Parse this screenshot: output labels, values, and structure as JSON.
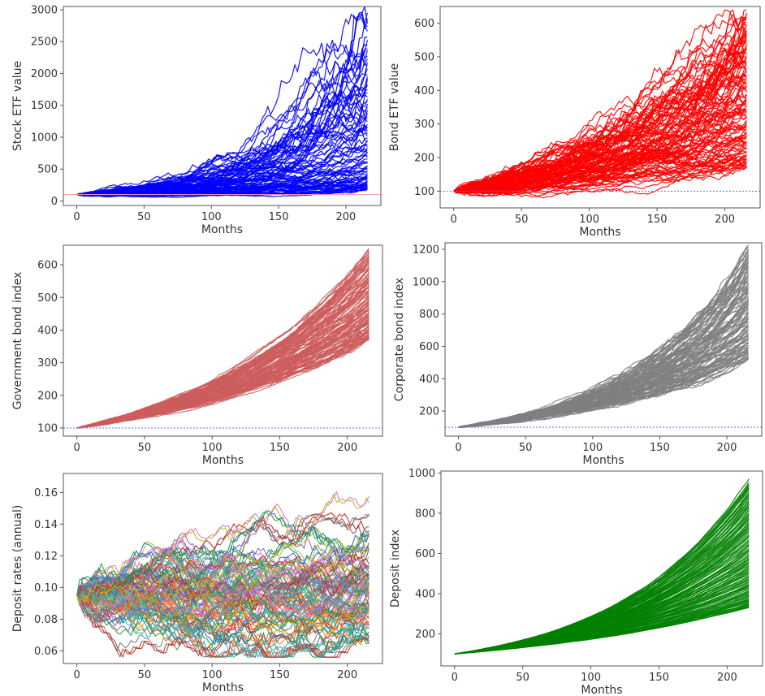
{
  "chart_data": [
    {
      "type": "line",
      "xlabel": "Months",
      "ylabel": "Stock ETF value",
      "xlim": [
        -10,
        226
      ],
      "ylim": [
        -70,
        3050
      ],
      "xticks": [
        0,
        50,
        100,
        150,
        200
      ],
      "yticks": [
        0,
        500,
        1000,
        1500,
        2000,
        2500,
        3000
      ],
      "color": "#0000ff",
      "baseline": 100,
      "baseline_color": "#ff9999",
      "baseline_style": "solid",
      "n_paths": 90,
      "months": 216,
      "final_range": [
        180,
        2950
      ]
    },
    {
      "type": "line",
      "xlabel": "Months",
      "ylabel": "Bond ETF value",
      "xlim": [
        -10,
        226
      ],
      "ylim": [
        50,
        650
      ],
      "xticks": [
        0,
        50,
        100,
        150,
        200
      ],
      "yticks": [
        100,
        200,
        300,
        400,
        500,
        600
      ],
      "color": "#ff0000",
      "baseline": 100,
      "baseline_color": "#6666ff",
      "baseline_style": "dotted",
      "n_paths": 110,
      "months": 216,
      "final_range": [
        170,
        640
      ]
    },
    {
      "type": "line",
      "xlabel": "Months",
      "ylabel": "Government bond index",
      "xlim": [
        -10,
        226
      ],
      "ylim": [
        75,
        660
      ],
      "xticks": [
        0,
        50,
        100,
        150,
        200
      ],
      "yticks": [
        100,
        200,
        300,
        400,
        500,
        600
      ],
      "color": "#cd5c5c",
      "baseline": 100,
      "baseline_color": "#6666ff",
      "baseline_style": "dotted",
      "n_paths": 110,
      "months": 216,
      "final_range": [
        370,
        650
      ]
    },
    {
      "type": "line",
      "xlabel": "Months",
      "ylabel": "Corporate bond index",
      "xlim": [
        -10,
        226
      ],
      "ylim": [
        45,
        1240
      ],
      "xticks": [
        0,
        50,
        100,
        150,
        200
      ],
      "yticks": [
        200,
        400,
        600,
        800,
        1000,
        1200
      ],
      "color": "#808080",
      "baseline": 100,
      "baseline_color": "#6666ff",
      "baseline_style": "dotted",
      "n_paths": 110,
      "months": 216,
      "final_range": [
        520,
        1230
      ]
    },
    {
      "type": "line",
      "xlabel": "Months",
      "ylabel": "Deposit rates (annual)",
      "xlim": [
        -10,
        226
      ],
      "ylim": [
        0.052,
        0.172
      ],
      "xticks": [
        0,
        50,
        100,
        150,
        200
      ],
      "yticks": [
        0.06,
        0.08,
        0.1,
        0.12,
        0.14,
        0.16
      ],
      "ytick_labels": [
        "0.06",
        "0.08",
        "0.10",
        "0.12",
        "0.14",
        "0.16"
      ],
      "colors": [
        "#1f77b4",
        "#ff7f0e",
        "#2ca02c",
        "#d62728",
        "#9467bd",
        "#8c564b",
        "#e377c2",
        "#7f7f7f",
        "#bcbd22",
        "#17becf"
      ],
      "start": 0.095,
      "n_paths": 110,
      "months": 216,
      "final_range": [
        0.06,
        0.165
      ]
    },
    {
      "type": "line",
      "xlabel": "Months",
      "ylabel": "Deposit index",
      "xlim": [
        -10,
        226
      ],
      "ylim": [
        40,
        1010
      ],
      "xticks": [
        0,
        50,
        100,
        150,
        200
      ],
      "yticks": [
        200,
        400,
        600,
        800,
        1000
      ],
      "color": "#008000",
      "n_paths": 100,
      "months": 216,
      "final_range": [
        330,
        970
      ]
    }
  ]
}
